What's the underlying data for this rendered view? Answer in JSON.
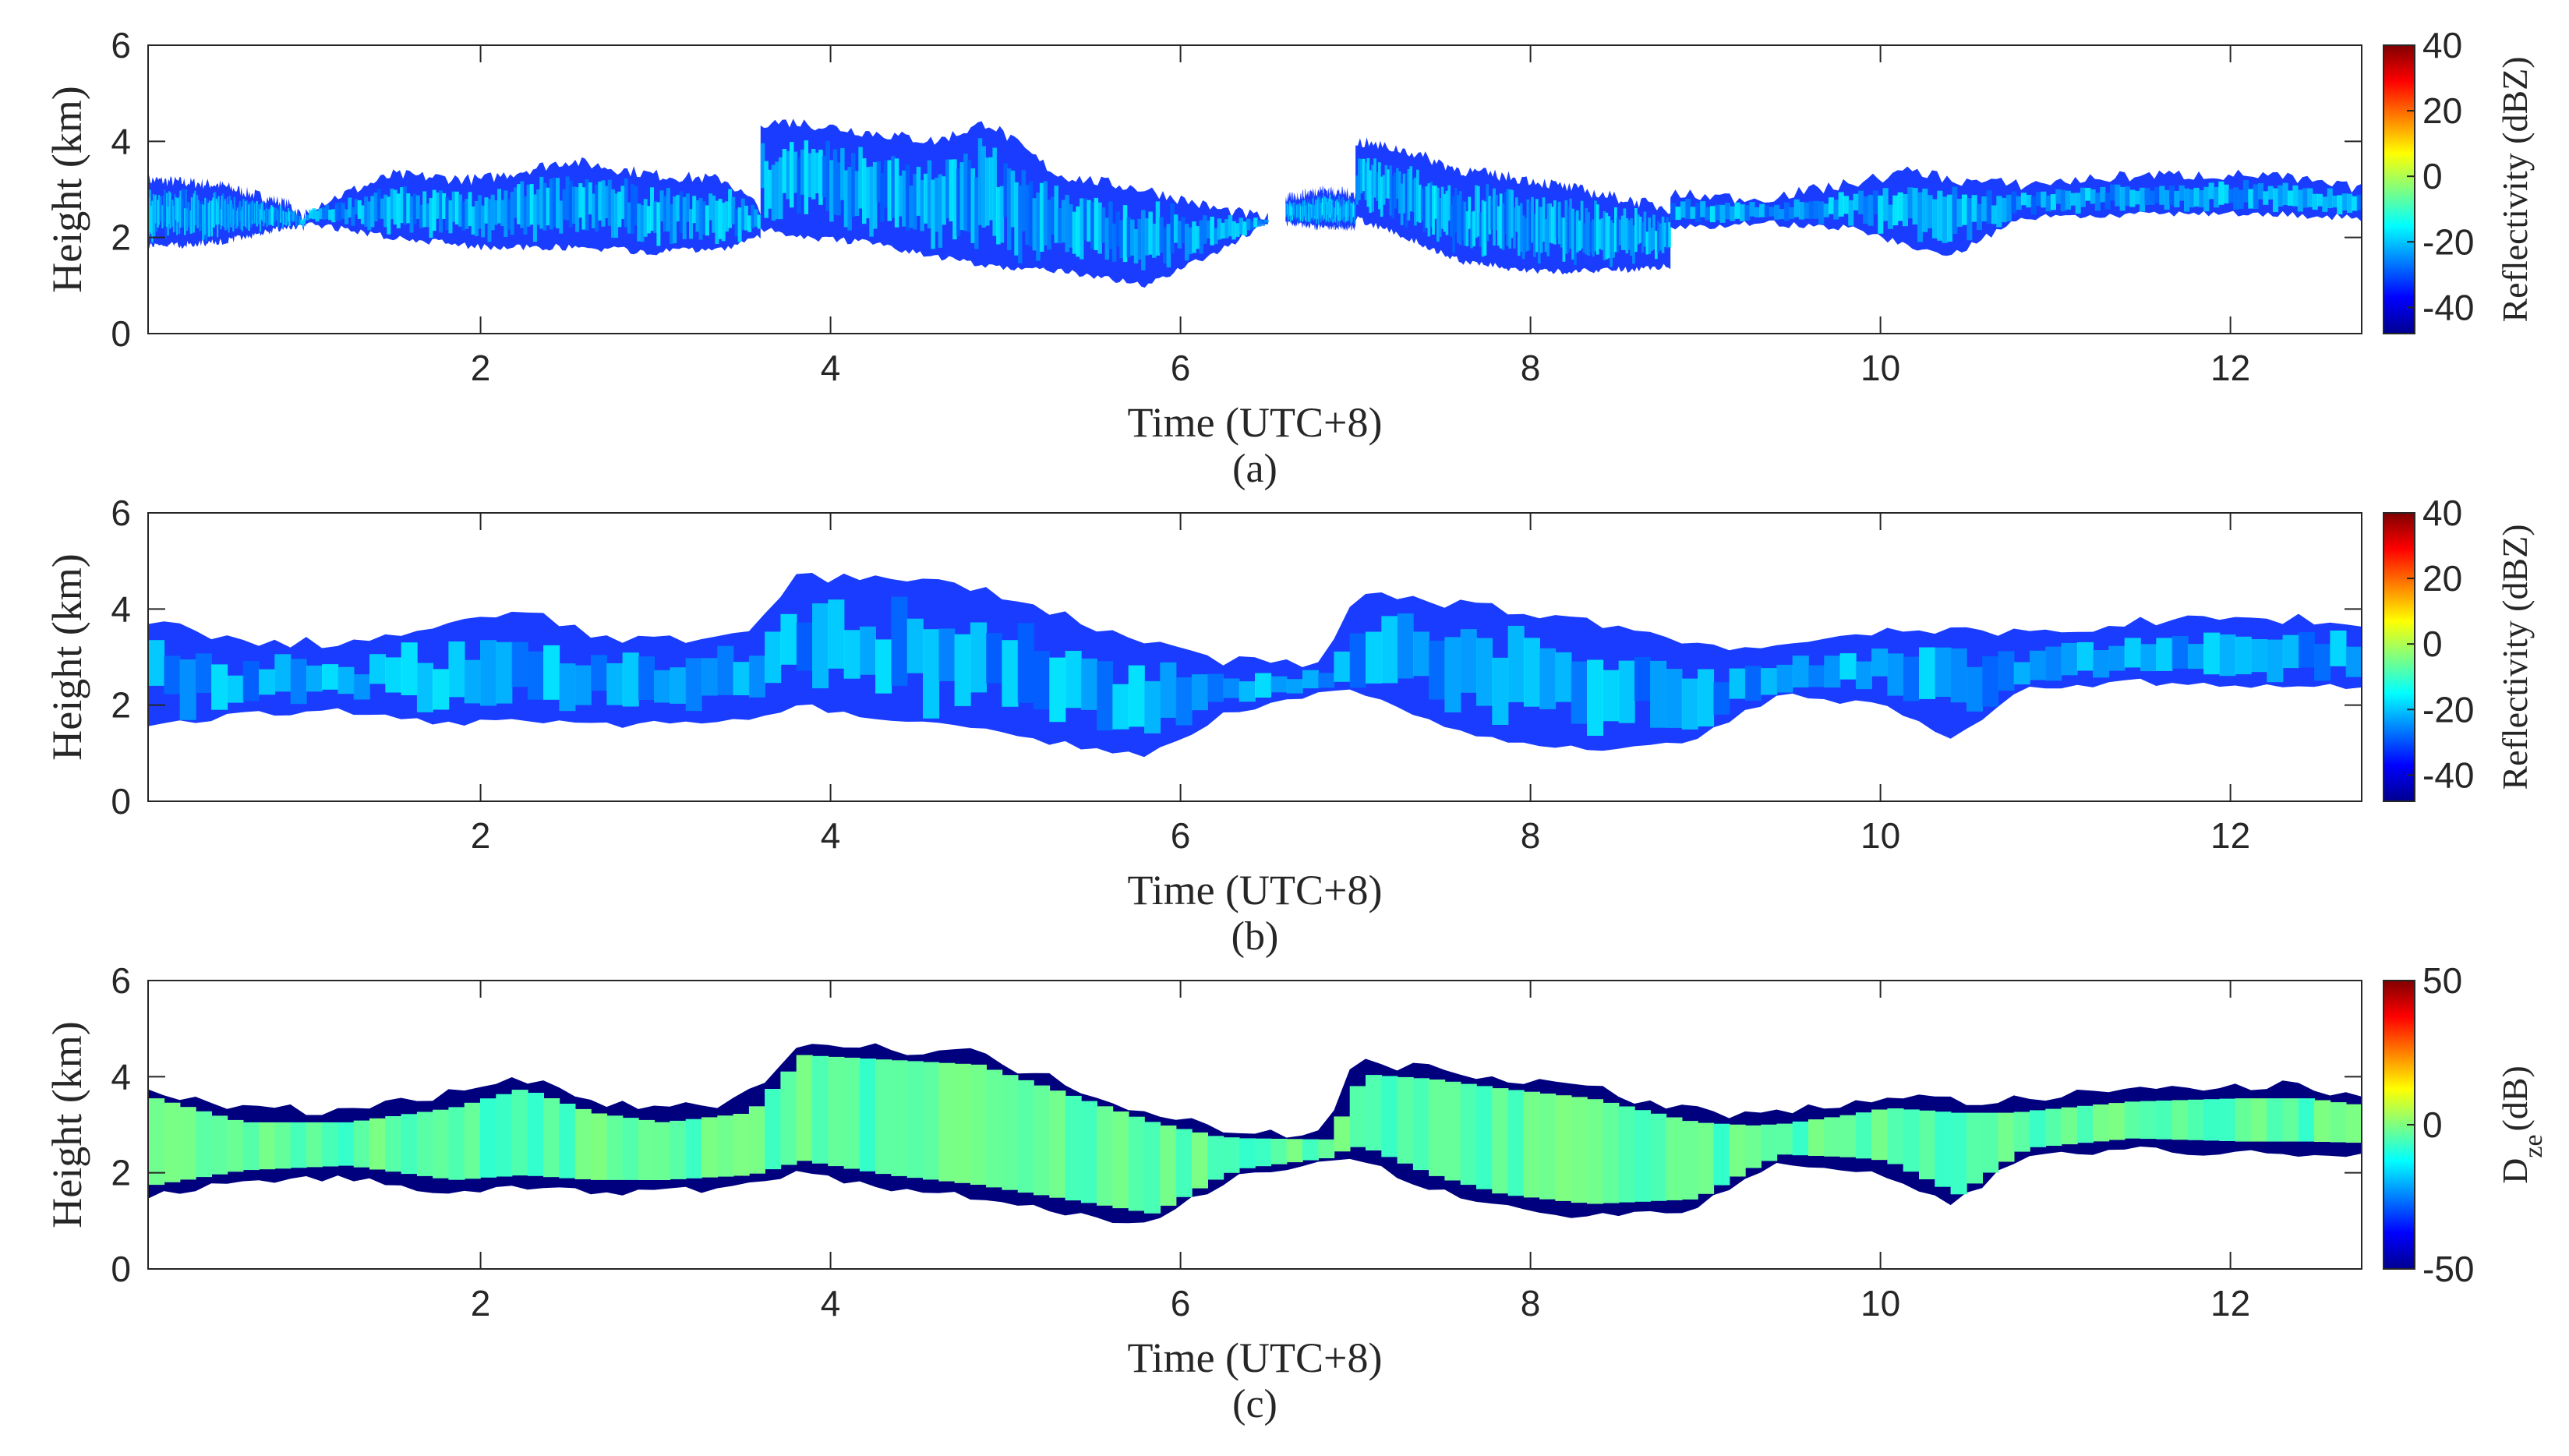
{
  "chart_data": [
    {
      "type": "heatmap",
      "panel": "(a)",
      "xlabel": "Time (UTC+8)",
      "ylabel": "Height (km)",
      "xlim": [
        0.1,
        12.75
      ],
      "ylim": [
        0,
        6
      ],
      "xticks": [
        2,
        4,
        6,
        8,
        10,
        12
      ],
      "yticks": [
        0,
        2,
        4,
        6
      ],
      "colorbar": {
        "label": "Reflectivity (dBZ)",
        "range": [
          -48,
          40
        ],
        "ticks": [
          -40,
          -20,
          0,
          20,
          40
        ],
        "colormap": "jet"
      },
      "cloud_segments": [
        {
          "t": [
            0.1,
            0.5,
            0.9,
            1.0
          ],
          "base_km": [
            1.8,
            1.9,
            2.2,
            2.2
          ],
          "top_km": [
            3.2,
            3.1,
            2.7,
            2.4
          ]
        },
        {
          "t": [
            1.0,
            1.5,
            2.0,
            2.5,
            3.0,
            3.4,
            3.6
          ],
          "base_km": [
            2.3,
            2.0,
            1.8,
            1.8,
            1.7,
            1.8,
            2.0
          ],
          "top_km": [
            2.6,
            3.3,
            3.2,
            3.6,
            3.3,
            3.2,
            2.6
          ]
        },
        {
          "t": [
            3.6,
            3.8,
            4.2,
            4.6,
            4.9,
            5.3,
            5.8,
            6.2,
            6.5
          ],
          "base_km": [
            2.2,
            2.0,
            1.9,
            1.6,
            1.4,
            1.3,
            1.0,
            1.7,
            2.3
          ],
          "top_km": [
            4.4,
            4.4,
            4.2,
            4.0,
            4.4,
            3.3,
            3.0,
            2.6,
            2.4
          ]
        },
        {
          "t": [
            6.6,
            6.8,
            7.0
          ],
          "base_km": [
            2.3,
            2.2,
            2.2
          ],
          "top_km": [
            2.8,
            3.0,
            2.9
          ]
        },
        {
          "t": [
            7.0,
            7.3,
            7.6,
            8.0,
            8.4,
            8.8
          ],
          "base_km": [
            2.4,
            2.0,
            1.5,
            1.3,
            1.3,
            1.4
          ],
          "top_km": [
            4.0,
            3.8,
            3.4,
            3.2,
            2.9,
            2.6
          ]
        },
        {
          "t": [
            8.8,
            9.3,
            9.8,
            10.2,
            10.4,
            10.8,
            11.5,
            12.2,
            12.75
          ],
          "base_km": [
            2.2,
            2.3,
            2.2,
            1.8,
            1.6,
            2.4,
            2.5,
            2.5,
            2.4
          ],
          "top_km": [
            2.9,
            2.8,
            3.1,
            3.4,
            3.2,
            3.1,
            3.3,
            3.3,
            3.0
          ]
        }
      ]
    },
    {
      "type": "heatmap",
      "panel": "(b)",
      "xlabel": "Time (UTC+8)",
      "ylabel": "Height (km)",
      "xlim": [
        0.1,
        12.75
      ],
      "ylim": [
        0,
        6
      ],
      "xticks": [
        2,
        4,
        6,
        8,
        10,
        12
      ],
      "yticks": [
        0,
        2,
        4,
        6
      ],
      "colorbar": {
        "label": "Reflectivity (dBZ)",
        "range": [
          -48,
          40
        ],
        "ticks": [
          -40,
          -20,
          0,
          20,
          40
        ],
        "colormap": "jet"
      },
      "cloud_segments": [
        {
          "t": [
            0.1,
            0.6,
            1.2,
            1.8,
            2.2,
            2.6,
            3.0,
            3.5,
            3.8,
            4.3,
            4.8,
            5.3,
            5.8,
            6.3,
            6.8,
            7.0,
            7.4,
            7.8,
            8.3,
            8.9,
            9.4,
            10.0,
            10.4,
            10.8,
            11.4,
            12.0,
            12.4,
            12.75
          ],
          "base_km": [
            1.5,
            1.8,
            1.9,
            1.6,
            1.7,
            1.6,
            1.6,
            1.7,
            2.0,
            1.7,
            1.5,
            1.2,
            0.9,
            1.9,
            2.2,
            2.3,
            1.7,
            1.3,
            1.1,
            1.2,
            2.2,
            2.0,
            1.3,
            2.3,
            2.5,
            2.4,
            2.4,
            2.4
          ],
          "top_km": [
            3.8,
            3.3,
            3.3,
            3.6,
            4.0,
            3.5,
            3.3,
            3.5,
            4.7,
            4.6,
            4.5,
            3.9,
            3.3,
            2.9,
            2.8,
            4.3,
            4.2,
            4.0,
            3.8,
            3.3,
            3.2,
            3.6,
            3.5,
            3.5,
            3.7,
            3.8,
            3.8,
            3.6
          ]
        }
      ]
    },
    {
      "type": "heatmap",
      "panel": "(c)",
      "xlabel": "Time (UTC+8)",
      "ylabel": "Height (km)",
      "xlim": [
        0.1,
        12.75
      ],
      "ylim": [
        0,
        6
      ],
      "xticks": [
        2,
        4,
        6,
        8,
        10,
        12
      ],
      "yticks": [
        0,
        2,
        4,
        6
      ],
      "colorbar": {
        "label_main": "D",
        "label_sub": "ze",
        "label_unit": "(dB)",
        "range": [
          -50,
          50
        ],
        "ticks": [
          -50,
          0,
          50
        ],
        "colormap": "jet"
      },
      "cloud_segments": [
        {
          "t": [
            0.1,
            0.6,
            1.2,
            1.8,
            2.2,
            2.6,
            3.0,
            3.5,
            3.8,
            4.3,
            4.8,
            5.3,
            5.8,
            6.3,
            6.8,
            7.0,
            7.4,
            7.8,
            8.3,
            8.9,
            9.4,
            10.0,
            10.4,
            10.8,
            11.4,
            12.0,
            12.4,
            12.75
          ],
          "base_km": [
            1.5,
            1.8,
            1.9,
            1.6,
            1.7,
            1.6,
            1.6,
            1.7,
            2.0,
            1.7,
            1.5,
            1.2,
            0.9,
            1.9,
            2.2,
            2.3,
            1.7,
            1.3,
            1.1,
            1.2,
            2.2,
            2.0,
            1.3,
            2.3,
            2.5,
            2.4,
            2.4,
            2.4
          ],
          "top_km": [
            3.8,
            3.3,
            3.3,
            3.6,
            4.0,
            3.5,
            3.3,
            3.5,
            4.7,
            4.6,
            4.5,
            3.9,
            3.3,
            2.9,
            2.8,
            4.3,
            4.2,
            4.0,
            3.8,
            3.3,
            3.2,
            3.6,
            3.5,
            3.5,
            3.7,
            3.8,
            3.8,
            3.6
          ]
        }
      ]
    }
  ]
}
